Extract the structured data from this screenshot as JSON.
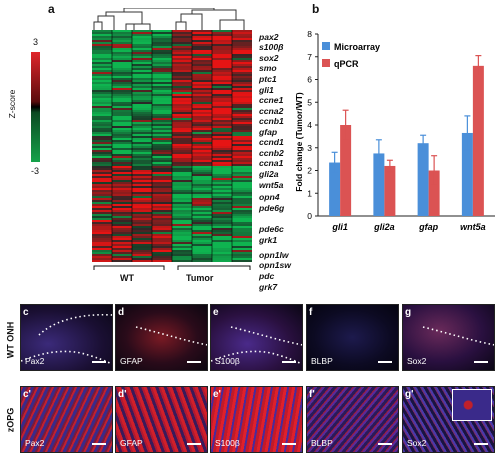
{
  "panel_letters": {
    "a": "a",
    "b": "b"
  },
  "heatmap": {
    "colorbar_title": "Z-score",
    "colorbar_max": "3",
    "colorbar_min": "-3",
    "group_labels": [
      "WT",
      "Tumor"
    ],
    "genes": [
      "pax2",
      "s100β",
      "sox2",
      "smo",
      "ptc1",
      "gli1",
      "ccne1",
      "ccna2",
      "ccnb1",
      "gfap",
      "ccnd1",
      "ccnb2",
      "ccna1",
      "gli2a",
      "wnt5a",
      "opn4",
      "pde6g",
      "pde6c",
      "grk1",
      "opn1lw",
      "opn1sw",
      "pdc",
      "grk7"
    ],
    "colors": {
      "high": "#e0262b",
      "low": "#15a24a",
      "mid": "#000000"
    }
  },
  "chart_data": {
    "type": "bar",
    "categories": [
      "gli1",
      "gli2a",
      "gfap",
      "wnt5a"
    ],
    "series": [
      {
        "name": "Microarray",
        "values": [
          2.35,
          2.75,
          3.2,
          3.65
        ],
        "errors": [
          0.45,
          0.6,
          0.35,
          0.75
        ],
        "color": "#4a8fd9"
      },
      {
        "name": "qPCR",
        "values": [
          4.0,
          2.2,
          2.0,
          6.6
        ],
        "errors": [
          0.65,
          0.25,
          0.65,
          0.45
        ],
        "color": "#db5353"
      }
    ],
    "ylabel": "Fold change (Tumor/WT)",
    "ylim": [
      0,
      8
    ],
    "yticks": [
      "0",
      "1",
      "2",
      "3",
      "4",
      "5",
      "6",
      "7",
      "8"
    ],
    "legend_position": "top-left",
    "grid": false
  },
  "micrographs": {
    "row_labels": [
      "WT ONH",
      "zOPG"
    ],
    "top": [
      {
        "sub": "c",
        "stain": "Pax2"
      },
      {
        "sub": "d",
        "stain": "GFAP"
      },
      {
        "sub": "e",
        "stain": "S100β"
      },
      {
        "sub": "f",
        "stain": "BLBP"
      },
      {
        "sub": "g",
        "stain": "Sox2"
      }
    ],
    "bottom": [
      {
        "sub": "c'",
        "stain": "Pax2"
      },
      {
        "sub": "d'",
        "stain": "GFAP"
      },
      {
        "sub": "e'",
        "stain": "S100β"
      },
      {
        "sub": "f'",
        "stain": "BLBP"
      },
      {
        "sub": "g'",
        "stain": "Sox2"
      }
    ]
  }
}
